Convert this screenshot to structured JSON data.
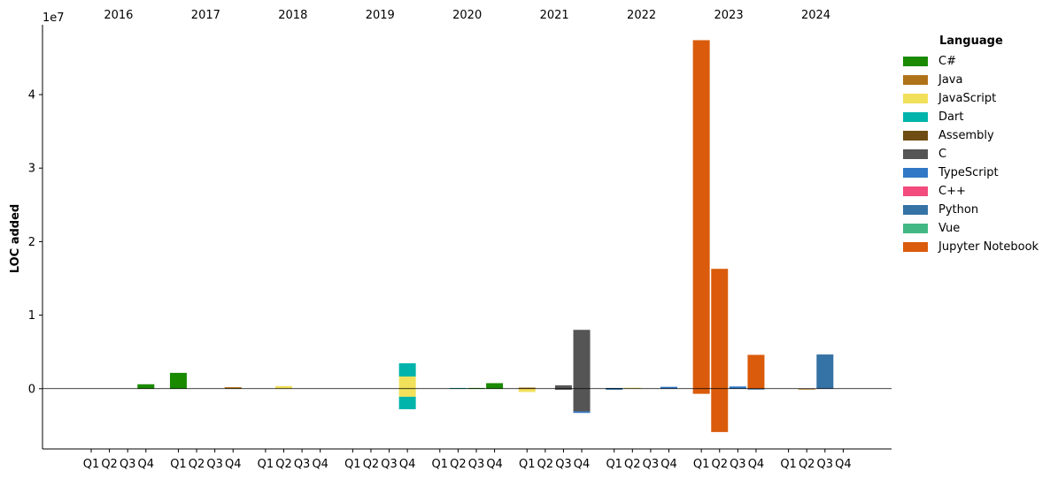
{
  "chart_data": {
    "type": "bar",
    "stacked": true,
    "xlabel": "",
    "ylabel": "LOC added",
    "y_offset_text": "1e7",
    "y_ticks": [
      0,
      1,
      2,
      3,
      4
    ],
    "ylim": [
      -8200000,
      49500000
    ],
    "years": [
      "2016",
      "2017",
      "2018",
      "2019",
      "2020",
      "2021",
      "2022",
      "2023",
      "2024"
    ],
    "quarters": [
      "Q1",
      "Q2",
      "Q3",
      "Q4"
    ],
    "zero_line": true,
    "legend": {
      "title": "Language",
      "position": "outside-right"
    },
    "series": [
      {
        "name": "C#",
        "color": "#1a8a00"
      },
      {
        "name": "Java",
        "color": "#b07219"
      },
      {
        "name": "JavaScript",
        "color": "#f1e05a"
      },
      {
        "name": "Dart",
        "color": "#00b4ab"
      },
      {
        "name": "Assembly",
        "color": "#6e4c13"
      },
      {
        "name": "C",
        "color": "#555555"
      },
      {
        "name": "TypeScript",
        "color": "#3178c6"
      },
      {
        "name": "C++",
        "color": "#f34b7d"
      },
      {
        "name": "Python",
        "color": "#3572a5"
      },
      {
        "name": "Vue",
        "color": "#41b883"
      },
      {
        "name": "Jupyter Notebook",
        "color": "#da5b0b"
      }
    ],
    "bars": [
      {
        "year": "2016",
        "quarter": "Q4",
        "segments": [
          {
            "series": "C#",
            "value": 600000
          }
        ]
      },
      {
        "year": "2017",
        "quarter": "Q1",
        "segments": [
          {
            "series": "C#",
            "value": 2150000
          }
        ]
      },
      {
        "year": "2017",
        "quarter": "Q4",
        "segments": [
          {
            "series": "Java",
            "value": 200000
          }
        ]
      },
      {
        "year": "2018",
        "quarter": "Q2",
        "segments": [
          {
            "series": "JavaScript",
            "value": 350000
          }
        ]
      },
      {
        "year": "2019",
        "quarter": "Q4",
        "segments": [
          {
            "series": "JavaScript",
            "value": 1650000
          },
          {
            "series": "Dart",
            "value": 1800000
          },
          {
            "series": "JavaScript",
            "value": -1100000
          },
          {
            "series": "Dart",
            "value": -1700000
          }
        ]
      },
      {
        "year": "2020",
        "quarter": "Q2",
        "segments": [
          {
            "series": "Dart",
            "value": 100000
          }
        ]
      },
      {
        "year": "2020",
        "quarter": "Q3",
        "segments": [
          {
            "series": "C#",
            "value": 100000
          }
        ]
      },
      {
        "year": "2020",
        "quarter": "Q4",
        "segments": [
          {
            "series": "C#",
            "value": 750000
          }
        ]
      },
      {
        "year": "2021",
        "quarter": "Q1",
        "segments": [
          {
            "series": "Java",
            "value": 150000
          },
          {
            "series": "JavaScript",
            "value": -450000
          }
        ]
      },
      {
        "year": "2021",
        "quarter": "Q3",
        "segments": [
          {
            "series": "C",
            "value": 450000
          },
          {
            "series": "C",
            "value": -150000
          }
        ]
      },
      {
        "year": "2021",
        "quarter": "Q4",
        "segments": [
          {
            "series": "C",
            "value": 8000000
          },
          {
            "series": "C",
            "value": -3100000
          },
          {
            "series": "TypeScript",
            "value": -200000
          }
        ]
      },
      {
        "year": "2022",
        "quarter": "Q1",
        "segments": [
          {
            "series": "Python",
            "value": 100000
          },
          {
            "series": "Python",
            "value": -150000
          }
        ]
      },
      {
        "year": "2022",
        "quarter": "Q2",
        "segments": [
          {
            "series": "JavaScript",
            "value": 120000
          }
        ]
      },
      {
        "year": "2022",
        "quarter": "Q4",
        "segments": [
          {
            "series": "TypeScript",
            "value": 250000
          }
        ]
      },
      {
        "year": "2023",
        "quarter": "Q1",
        "segments": [
          {
            "series": "Jupyter Notebook",
            "value": 47400000
          },
          {
            "series": "Jupyter Notebook",
            "value": -700000
          }
        ]
      },
      {
        "year": "2023",
        "quarter": "Q2",
        "segments": [
          {
            "series": "Jupyter Notebook",
            "value": 16300000
          },
          {
            "series": "Jupyter Notebook",
            "value": -5900000
          }
        ]
      },
      {
        "year": "2023",
        "quarter": "Q3",
        "segments": [
          {
            "series": "TypeScript",
            "value": 300000
          }
        ]
      },
      {
        "year": "2023",
        "quarter": "Q4",
        "segments": [
          {
            "series": "Jupyter Notebook",
            "value": 4600000
          },
          {
            "series": "Python",
            "value": -100000
          }
        ]
      },
      {
        "year": "2024",
        "quarter": "Q2",
        "segments": [
          {
            "series": "Java",
            "value": -100000
          }
        ]
      },
      {
        "year": "2024",
        "quarter": "Q3",
        "segments": [
          {
            "series": "Python",
            "value": 4650000
          }
        ]
      }
    ]
  }
}
